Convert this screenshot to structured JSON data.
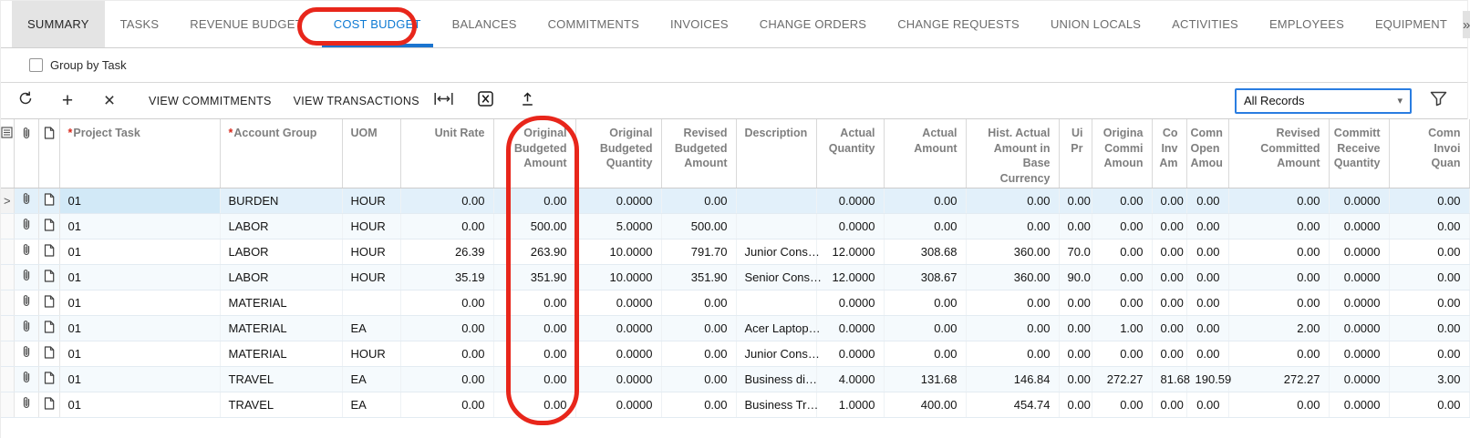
{
  "tabs": {
    "items": [
      {
        "label": "SUMMARY",
        "state": "highlighted"
      },
      {
        "label": "TASKS",
        "state": "normal"
      },
      {
        "label": "REVENUE BUDGET",
        "state": "normal"
      },
      {
        "label": "COST BUDGET",
        "state": "current"
      },
      {
        "label": "BALANCES",
        "state": "normal"
      },
      {
        "label": "COMMITMENTS",
        "state": "normal"
      },
      {
        "label": "INVOICES",
        "state": "normal"
      },
      {
        "label": "CHANGE ORDERS",
        "state": "normal"
      },
      {
        "label": "CHANGE REQUESTS",
        "state": "normal"
      },
      {
        "label": "UNION LOCALS",
        "state": "normal"
      },
      {
        "label": "ACTIVITIES",
        "state": "normal"
      },
      {
        "label": "EMPLOYEES",
        "state": "normal"
      },
      {
        "label": "EQUIPMENT",
        "state": "normal"
      }
    ],
    "overflow_label": "»"
  },
  "group_by_task": {
    "label": "Group by Task",
    "checked": false
  },
  "toolbar": {
    "icons": [
      "refresh-icon",
      "add-icon",
      "delete-icon",
      "fit-width-icon",
      "export-excel-icon",
      "upload-icon",
      "filter-icon"
    ],
    "view_commitments": "VIEW COMMITMENTS",
    "view_transactions": "VIEW TRANSACTIONS",
    "records_filter_value": "All Records"
  },
  "grid": {
    "columns": [
      {
        "key": "projectTask",
        "label": "Project Task",
        "align": "left",
        "required": true
      },
      {
        "key": "accountGroup",
        "label": "Account Group",
        "align": "left",
        "required": true
      },
      {
        "key": "uom",
        "label": "UOM",
        "align": "left",
        "required": false
      },
      {
        "key": "unitRate",
        "label": "Unit Rate",
        "align": "right",
        "required": false
      },
      {
        "key": "origBudgetAmount",
        "label": "Original\nBudgeted\nAmount",
        "align": "right",
        "required": false
      },
      {
        "key": "origBudgetQty",
        "label": "Original\nBudgeted\nQuantity",
        "align": "right",
        "required": false
      },
      {
        "key": "revBudgetAmount",
        "label": "Revised\nBudgeted\nAmount",
        "align": "right",
        "required": false
      },
      {
        "key": "description",
        "label": "Description",
        "align": "left",
        "required": false
      },
      {
        "key": "actualQty",
        "label": "Actual\nQuantity",
        "align": "right",
        "required": false
      },
      {
        "key": "actualAmount",
        "label": "Actual\nAmount",
        "align": "right",
        "required": false
      },
      {
        "key": "histActualBase",
        "label": "Hist. Actual\nAmount in\nBase\nCurrency",
        "align": "right",
        "required": false
      },
      {
        "key": "uiPr",
        "label": "Ui\nPr",
        "align": "right",
        "required": false
      },
      {
        "key": "origCommitted",
        "label": "Origina\nCommi\nAmoun",
        "align": "right",
        "required": false
      },
      {
        "key": "coInvAm",
        "label": "Co\nInv\nAm",
        "align": "right",
        "required": false
      },
      {
        "key": "commOpenAmount",
        "label": "Comn\nOpen\nAmou",
        "align": "right",
        "required": false
      },
      {
        "key": "revCommittedAmount",
        "label": "Revised\nCommitted\nAmount",
        "align": "right",
        "required": false
      },
      {
        "key": "committedRecvQty",
        "label": "Committ\nReceive\nQuantity",
        "align": "right",
        "required": false
      },
      {
        "key": "commInvQty",
        "label": "Comn\nInvoi\nQuan",
        "align": "right",
        "required": false
      }
    ],
    "rows": [
      {
        "selected": true,
        "cells": {
          "projectTask": "01",
          "accountGroup": "BURDEN",
          "uom": "HOUR",
          "unitRate": "0.00",
          "origBudgetAmount": "0.00",
          "origBudgetQty": "0.0000",
          "revBudgetAmount": "0.00",
          "description": "",
          "actualQty": "0.0000",
          "actualAmount": "0.00",
          "histActualBase": "0.00",
          "uiPr": "0.00",
          "origCommitted": "0.00",
          "coInvAm": "0.00",
          "commOpenAmount": "0.00",
          "revCommittedAmount": "0.00",
          "committedRecvQty": "0.0000",
          "commInvQty": "0.00"
        }
      },
      {
        "selected": false,
        "cells": {
          "projectTask": "01",
          "accountGroup": "LABOR",
          "uom": "HOUR",
          "unitRate": "0.00",
          "origBudgetAmount": "500.00",
          "origBudgetQty": "5.0000",
          "revBudgetAmount": "500.00",
          "description": "",
          "actualQty": "0.0000",
          "actualAmount": "0.00",
          "histActualBase": "0.00",
          "uiPr": "0.00",
          "origCommitted": "0.00",
          "coInvAm": "0.00",
          "commOpenAmount": "0.00",
          "revCommittedAmount": "0.00",
          "committedRecvQty": "0.0000",
          "commInvQty": "0.00"
        }
      },
      {
        "selected": false,
        "cells": {
          "projectTask": "01",
          "accountGroup": "LABOR",
          "uom": "HOUR",
          "unitRate": "26.39",
          "origBudgetAmount": "263.90",
          "origBudgetQty": "10.0000",
          "revBudgetAmount": "791.70",
          "description": "Junior Cons…",
          "actualQty": "12.0000",
          "actualAmount": "308.68",
          "histActualBase": "360.00",
          "uiPr": "70.0",
          "origCommitted": "0.00",
          "coInvAm": "0.00",
          "commOpenAmount": "0.00",
          "revCommittedAmount": "0.00",
          "committedRecvQty": "0.0000",
          "commInvQty": "0.00"
        }
      },
      {
        "selected": false,
        "cells": {
          "projectTask": "01",
          "accountGroup": "LABOR",
          "uom": "HOUR",
          "unitRate": "35.19",
          "origBudgetAmount": "351.90",
          "origBudgetQty": "10.0000",
          "revBudgetAmount": "351.90",
          "description": "Senior Cons…",
          "actualQty": "12.0000",
          "actualAmount": "308.67",
          "histActualBase": "360.00",
          "uiPr": "90.0",
          "origCommitted": "0.00",
          "coInvAm": "0.00",
          "commOpenAmount": "0.00",
          "revCommittedAmount": "0.00",
          "committedRecvQty": "0.0000",
          "commInvQty": "0.00"
        }
      },
      {
        "selected": false,
        "cells": {
          "projectTask": "01",
          "accountGroup": "MATERIAL",
          "uom": "",
          "unitRate": "0.00",
          "origBudgetAmount": "0.00",
          "origBudgetQty": "0.0000",
          "revBudgetAmount": "0.00",
          "description": "",
          "actualQty": "0.0000",
          "actualAmount": "0.00",
          "histActualBase": "0.00",
          "uiPr": "0.00",
          "origCommitted": "0.00",
          "coInvAm": "0.00",
          "commOpenAmount": "0.00",
          "revCommittedAmount": "0.00",
          "committedRecvQty": "0.0000",
          "commInvQty": "0.00"
        }
      },
      {
        "selected": false,
        "cells": {
          "projectTask": "01",
          "accountGroup": "MATERIAL",
          "uom": "EA",
          "unitRate": "0.00",
          "origBudgetAmount": "0.00",
          "origBudgetQty": "0.0000",
          "revBudgetAmount": "0.00",
          "description": "Acer Laptop…",
          "actualQty": "0.0000",
          "actualAmount": "0.00",
          "histActualBase": "0.00",
          "uiPr": "0.00",
          "origCommitted": "1.00",
          "coInvAm": "0.00",
          "commOpenAmount": "0.00",
          "revCommittedAmount": "2.00",
          "committedRecvQty": "0.0000",
          "commInvQty": "0.00"
        }
      },
      {
        "selected": false,
        "cells": {
          "projectTask": "01",
          "accountGroup": "MATERIAL",
          "uom": "HOUR",
          "unitRate": "0.00",
          "origBudgetAmount": "0.00",
          "origBudgetQty": "0.0000",
          "revBudgetAmount": "0.00",
          "description": "Junior Cons…",
          "actualQty": "0.0000",
          "actualAmount": "0.00",
          "histActualBase": "0.00",
          "uiPr": "0.00",
          "origCommitted": "0.00",
          "coInvAm": "0.00",
          "commOpenAmount": "0.00",
          "revCommittedAmount": "0.00",
          "committedRecvQty": "0.0000",
          "commInvQty": "0.00"
        }
      },
      {
        "selected": false,
        "cells": {
          "projectTask": "01",
          "accountGroup": "TRAVEL",
          "uom": "EA",
          "unitRate": "0.00",
          "origBudgetAmount": "0.00",
          "origBudgetQty": "0.0000",
          "revBudgetAmount": "0.00",
          "description": "Business di…",
          "actualQty": "4.0000",
          "actualAmount": "131.68",
          "histActualBase": "146.84",
          "uiPr": "0.00",
          "origCommitted": "272.27",
          "coInvAm": "81.68",
          "commOpenAmount": "190.59",
          "revCommittedAmount": "272.27",
          "committedRecvQty": "0.0000",
          "commInvQty": "3.00"
        }
      },
      {
        "selected": false,
        "cells": {
          "projectTask": "01",
          "accountGroup": "TRAVEL",
          "uom": "EA",
          "unitRate": "0.00",
          "origBudgetAmount": "0.00",
          "origBudgetQty": "0.0000",
          "revBudgetAmount": "0.00",
          "description": "Business Tr…",
          "actualQty": "1.0000",
          "actualAmount": "400.00",
          "histActualBase": "454.74",
          "uiPr": "0.00",
          "origCommitted": "0.00",
          "coInvAm": "0.00",
          "commOpenAmount": "0.00",
          "revCommittedAmount": "0.00",
          "committedRecvQty": "0.0000",
          "commInvQty": "0.00"
        }
      }
    ]
  },
  "annotations": {
    "color": "#e8261b",
    "items": [
      "circle-around-cost-budget-tab",
      "circle-around-original-budgeted-amount-column"
    ]
  }
}
